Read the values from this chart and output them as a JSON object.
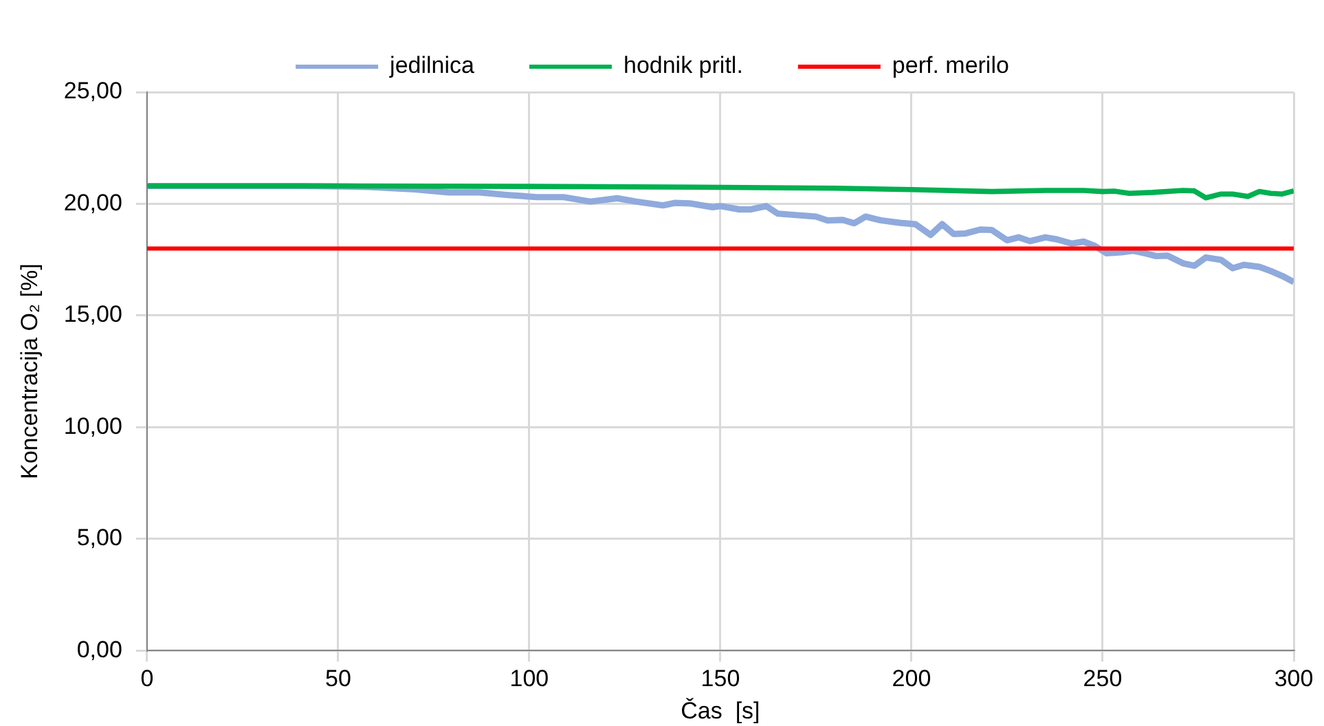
{
  "chart_data": {
    "type": "line",
    "xlabel": "Čas  [s]",
    "ylabel": "Koncentracija O₂ [%]",
    "xlim": [
      0,
      300
    ],
    "xticks": [
      0,
      50,
      100,
      150,
      200,
      250,
      300
    ],
    "ylim": [
      0,
      25
    ],
    "yticks": [
      {
        "value": 0,
        "label": "0,00"
      },
      {
        "value": 5,
        "label": "5,00"
      },
      {
        "value": 10,
        "label": "10,00"
      },
      {
        "value": 15,
        "label": "15,00"
      },
      {
        "value": 20,
        "label": "20,00"
      },
      {
        "value": 25,
        "label": "25,00"
      }
    ],
    "grid": true,
    "legend": "top",
    "marker": "none",
    "line_style": "solid",
    "series": [
      {
        "name": "jedilnica",
        "color": "#8faadc",
        "x": [
          0,
          20,
          40,
          58,
          70,
          79,
          87,
          94,
          102,
          109,
          116,
          123,
          128,
          135,
          138,
          142,
          148,
          150,
          155,
          158,
          162,
          165,
          175,
          178,
          182,
          185,
          188,
          192,
          197,
          201,
          205,
          208,
          211,
          214,
          218,
          221,
          225,
          228,
          231,
          235,
          238,
          242,
          245,
          248,
          251,
          255,
          258,
          261,
          264,
          267,
          271,
          274,
          277,
          281,
          284,
          287,
          291,
          294,
          297,
          300
        ],
        "values": [
          20.8,
          20.8,
          20.8,
          20.76,
          20.65,
          20.51,
          20.51,
          20.4,
          20.3,
          20.3,
          20.1,
          20.25,
          20.1,
          19.93,
          20.04,
          20.02,
          19.85,
          19.9,
          19.75,
          19.75,
          19.9,
          19.56,
          19.43,
          19.26,
          19.28,
          19.13,
          19.43,
          19.26,
          19.15,
          19.09,
          18.61,
          19.09,
          18.65,
          18.67,
          18.85,
          18.83,
          18.37,
          18.5,
          18.33,
          18.5,
          18.41,
          18.22,
          18.31,
          18.11,
          17.79,
          17.83,
          17.9,
          17.79,
          17.66,
          17.68,
          17.34,
          17.23,
          17.6,
          17.49,
          17.12,
          17.27,
          17.18,
          16.99,
          16.77,
          16.5
        ]
      },
      {
        "name": "hodnik pritl.",
        "color": "#00b050",
        "x": [
          0,
          50,
          100,
          150,
          180,
          200,
          221,
          235,
          245,
          250,
          253,
          257,
          263,
          271,
          274,
          277,
          281,
          284,
          288,
          291,
          294,
          297,
          300
        ],
        "values": [
          20.8,
          20.8,
          20.78,
          20.74,
          20.7,
          20.64,
          20.55,
          20.6,
          20.6,
          20.55,
          20.57,
          20.47,
          20.51,
          20.6,
          20.58,
          20.27,
          20.44,
          20.44,
          20.33,
          20.55,
          20.47,
          20.44,
          20.58
        ]
      },
      {
        "name": "perf. merilo",
        "color": "#ff0000",
        "x": [
          0,
          300
        ],
        "values": [
          18,
          18
        ]
      }
    ]
  }
}
